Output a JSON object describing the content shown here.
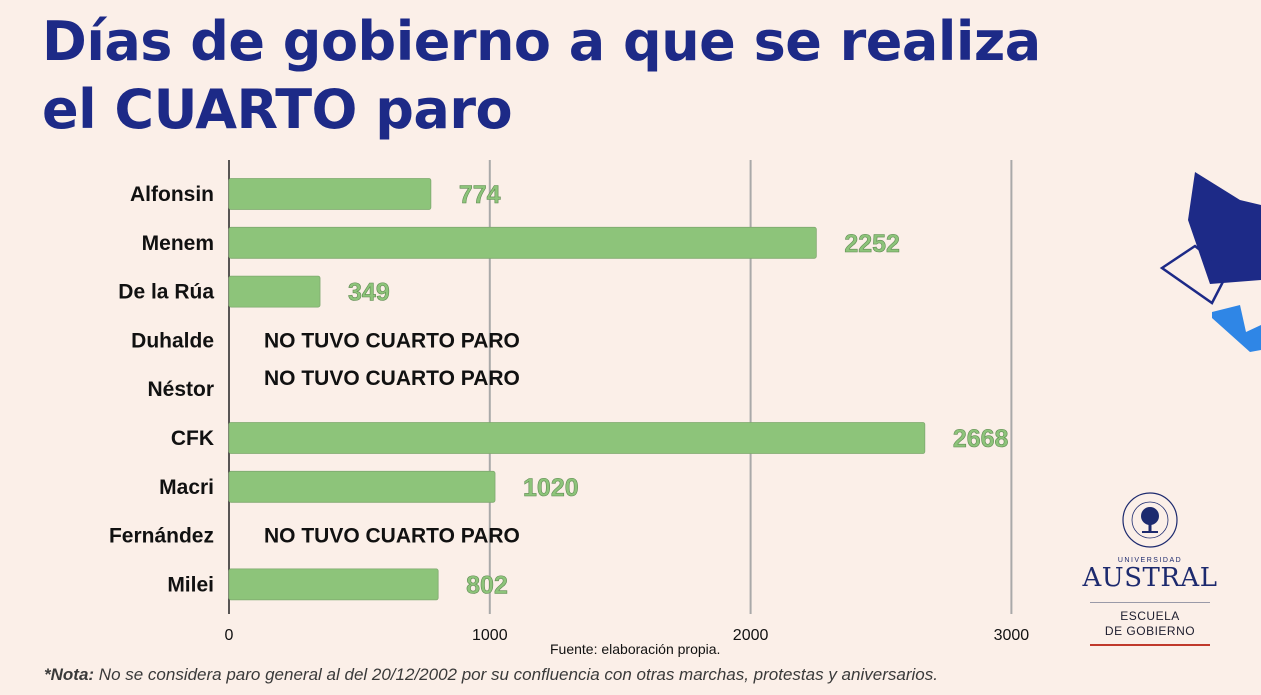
{
  "title_line1": "Días de gobierno a que se realiza",
  "title_line2": "el CUARTO paro",
  "source": "Fuente: elaboración propia.",
  "note_label": "*Nota:",
  "note_text": " No se considera paro general al del 20/12/2002 por su confluencia con otras marchas, protestas y aniversarios.",
  "logo": {
    "university": "UNIVERSIDAD",
    "name": "AUSTRAL",
    "school_line1": "ESCUELA",
    "school_line2": "DE GOBIERNO",
    "seal_text": "STUDIVM·AUSTRALIS·UNIVERSITAS"
  },
  "colors": {
    "background": "#fbefe8",
    "title": "#1d2a87",
    "bar": "#8dc47a",
    "value_label": "#8dc47a",
    "deco_navy": "#1d2a87",
    "deco_blue": "#2f86e6"
  },
  "chart_data": {
    "type": "bar",
    "orientation": "horizontal",
    "categories": [
      "Alfonsin",
      "Menem",
      "De la Rúa",
      "Duhalde",
      "Néstor",
      "CFK",
      "Macri",
      "Fernández",
      "Milei"
    ],
    "values": [
      774,
      2252,
      349,
      null,
      null,
      2668,
      1020,
      null,
      802
    ],
    "value_labels": [
      "774",
      "2252",
      "349",
      "",
      "",
      "2668",
      "1020",
      "",
      "802"
    ],
    "annotations": [
      "",
      "",
      "",
      "NO TUVO CUARTO PARO",
      "NO TUVO CUARTO PARO",
      "",
      "",
      "NO TUVO CUARTO PARO",
      ""
    ],
    "xlim": [
      0,
      3000
    ],
    "xticks": [
      0,
      1000,
      2000,
      3000
    ],
    "xtick_labels": [
      "0",
      "1000",
      "2000",
      "3000"
    ],
    "grid": true,
    "legend": "none"
  }
}
